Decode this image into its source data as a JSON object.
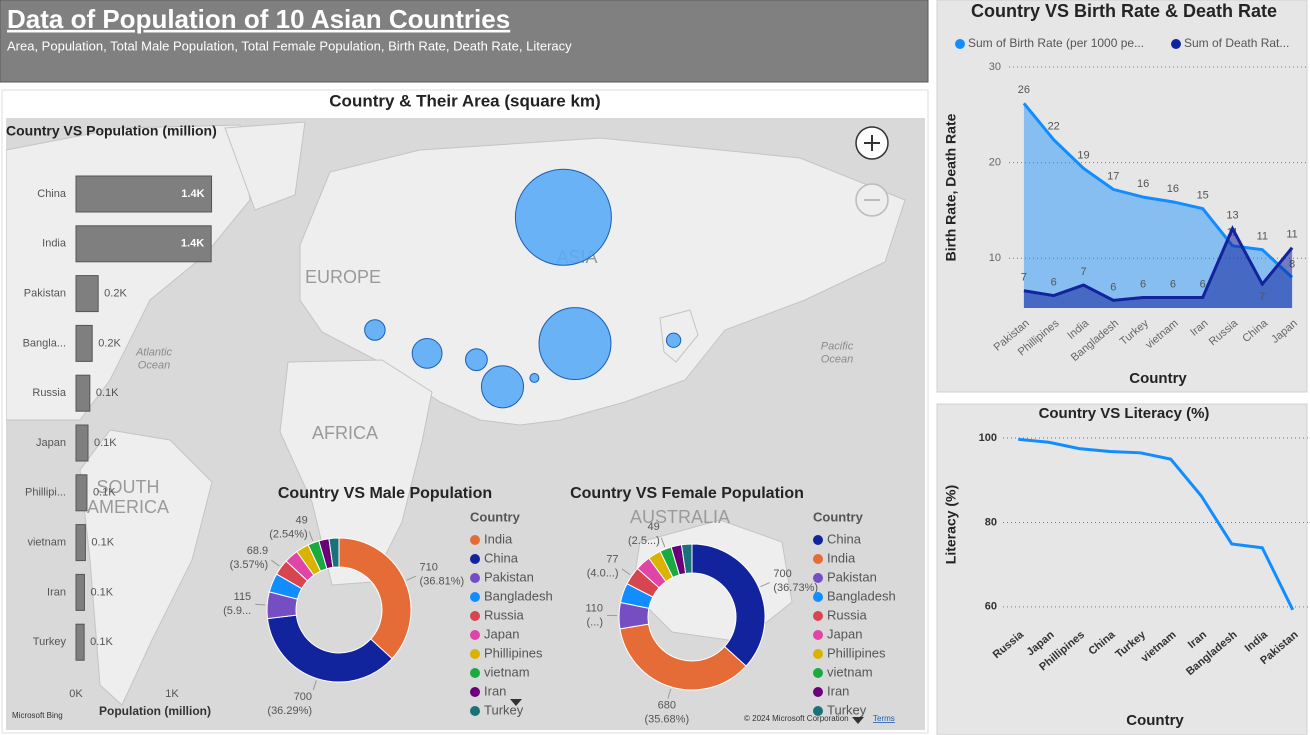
{
  "header": {
    "title": "Data of Population of 10 Asian Countries",
    "subtitle": "Area, Population, Total Male Population, Total Female Population, Birth Rate, Death Rate, Literacy"
  },
  "chart_data": [
    {
      "type": "map",
      "title": "Country & Their Area (square km)",
      "categories": [
        "Russia",
        "China",
        "India",
        "Iran",
        "Pakistan",
        "Turkey",
        "Japan",
        "Bangladesh"
      ],
      "lon": [
        100,
        104,
        79,
        53,
        70,
        35,
        138,
        90
      ],
      "lat": [
        64,
        35,
        21,
        32,
        30,
        39,
        36,
        24
      ],
      "values": [
        17100000,
        9600000,
        3290000,
        1650000,
        880000,
        780000,
        380000,
        148000
      ],
      "color": "#5aabf5",
      "labels": [
        "EUROPE",
        "ASIA",
        "AFRICA",
        "SOUTH AMERICA",
        "AUSTRALIA",
        "Atlantic Ocean",
        "Pacific Ocean"
      ],
      "attribution": [
        "Microsoft Bing",
        "© 2024 Microsoft Corporation",
        "Terms"
      ]
    },
    {
      "type": "bar",
      "orientation": "horizontal",
      "title": "Country VS Population (million)",
      "x_label": "Population (million)",
      "categories": [
        "China",
        "India",
        "Pakistan",
        "Bangla...",
        "Russia",
        "Japan",
        "Phillipi...",
        "vietnam",
        "Iran",
        "Turkey"
      ],
      "values": [
        1412,
        1408,
        231,
        169,
        144,
        125,
        114,
        98,
        88,
        85
      ],
      "value_labels": [
        "1.4K",
        "1.4K",
        "0.2K",
        "0.2K",
        "0.1K",
        "0.1K",
        "0.1K",
        "0.1K",
        "0.1K",
        "0.1K"
      ],
      "color": "#7f7f7f",
      "xlim": [
        0,
        1500
      ],
      "xticks": [
        {
          "value": 0,
          "label": "0K"
        },
        {
          "value": 1000,
          "label": "1K"
        }
      ]
    },
    {
      "type": "donut",
      "title": "Country VS Male Population",
      "legend_title": "Country",
      "categories": [
        "India",
        "China",
        "Pakistan",
        "Bangladesh",
        "Russia",
        "Japan",
        "Phillipines",
        "vietnam",
        "Iran",
        "Turkey"
      ],
      "values": [
        710,
        700,
        115,
        82,
        68.9,
        61,
        56,
        49,
        44,
        43
      ],
      "value_labels": [
        "710 (36.81%)",
        "700 (36.29%)",
        "115 (5.9...",
        null,
        "68.9 (3.57%)",
        null,
        null,
        "49 (2.54%)",
        null,
        null
      ],
      "colors": [
        "#e66c37",
        "#12239e",
        "#744ec2",
        "#118dff",
        "#d64550",
        "#e044a7",
        "#d9b300",
        "#1aab40",
        "#6b007b",
        "#197278"
      ]
    },
    {
      "type": "donut",
      "title": "Country VS Female Population",
      "legend_title": "Country",
      "categories": [
        "China",
        "India",
        "Pakistan",
        "Bangladesh",
        "Russia",
        "Japan",
        "Phillipines",
        "vietnam",
        "Iran",
        "Turkey"
      ],
      "values": [
        700,
        680,
        110,
        83,
        77,
        64,
        55,
        49,
        44,
        43.8
      ],
      "value_labels": [
        "700 (36.73%)",
        "680 (35.68%)",
        "110 (...)",
        null,
        "77 (4.0...)",
        null,
        null,
        "49 (2.5...)",
        null,
        null
      ],
      "colors": [
        "#12239e",
        "#e66c37",
        "#744ec2",
        "#118dff",
        "#d64550",
        "#e044a7",
        "#d9b300",
        "#1aab40",
        "#6b007b",
        "#197278"
      ]
    },
    {
      "type": "area",
      "title": "Country VS Birth Rate & Death Rate",
      "x_label": "Country",
      "y_label": "Birth Rate, Death Rate",
      "categories": [
        "Pakistan",
        "Phillipines",
        "India",
        "Bangladesh",
        "Turkey",
        "vietnam",
        "Iran",
        "Russia",
        "China",
        "Japan"
      ],
      "series": [
        {
          "name": "Sum of Birth Rate (per 1000 pe...",
          "color": "#118dff",
          "values": [
            26.2,
            22.4,
            19.4,
            17.2,
            16.4,
            15.9,
            15.2,
            11.3,
            10.9,
            8.0
          ],
          "value_labels": [
            "26",
            "22",
            "19",
            "17",
            "16",
            "16",
            "15",
            "11",
            "11",
            "8"
          ]
        },
        {
          "name": "Sum of Death Rat...",
          "color": "#12239e",
          "values": [
            6.6,
            6.1,
            7.2,
            5.6,
            5.9,
            5.9,
            5.9,
            13.1,
            7.3,
            11.1
          ],
          "value_labels": [
            "7",
            "6",
            "7",
            "6",
            "6",
            "6",
            "6",
            "13",
            "7",
            "11"
          ]
        }
      ],
      "ylim": [
        4.8,
        30
      ],
      "yticks": [
        10,
        20,
        30
      ],
      "grid": true
    },
    {
      "type": "line",
      "title": "Country VS Literacy (%)",
      "x_label": "Country",
      "y_label": "Literacy (%)",
      "categories": [
        "Russia",
        "Japan",
        "Phillipines",
        "China",
        "Turkey",
        "vietnam",
        "Iran",
        "Bangladesh",
        "India",
        "Pakistan"
      ],
      "values": [
        99.7,
        99.0,
        97.5,
        96.8,
        96.5,
        95.0,
        86.3,
        74.9,
        74.0,
        59.3
      ],
      "color": "#118dff",
      "ylim": [
        57,
        102
      ],
      "yticks": [
        60,
        80,
        100
      ],
      "grid": true
    }
  ]
}
